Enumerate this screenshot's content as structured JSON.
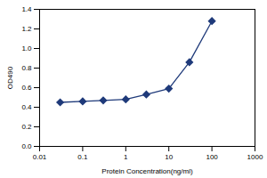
{
  "chart_data": {
    "type": "line",
    "x_label": "Protein Concentration(ng/ml)",
    "y_label": "OD490",
    "x": [
      0.03,
      0.1,
      0.3,
      1,
      3,
      10,
      30,
      100
    ],
    "values": [
      0.45,
      0.46,
      0.47,
      0.48,
      0.53,
      0.59,
      0.86,
      1.28
    ],
    "color": "#1f3a7a",
    "marker": "diamond",
    "line_style": "solid",
    "log": "x",
    "grid": false,
    "xlim": [
      0.01,
      1000
    ],
    "xticks": [
      0.01,
      0.1,
      1,
      10,
      100,
      1000
    ],
    "ylim": [
      0,
      1.4
    ],
    "yticks": [
      {
        "value": 0,
        "label": "0.0"
      },
      {
        "value": 0.2,
        "label": "0.2"
      },
      {
        "value": 0.4,
        "label": "0.4"
      },
      {
        "value": 0.6,
        "label": "0.6"
      },
      {
        "value": 0.8,
        "label": "0.8"
      },
      {
        "value": 1,
        "label": "1.0"
      },
      {
        "value": 1.2,
        "label": "1.2"
      },
      {
        "value": 1.4,
        "label": "1.4"
      }
    ]
  }
}
